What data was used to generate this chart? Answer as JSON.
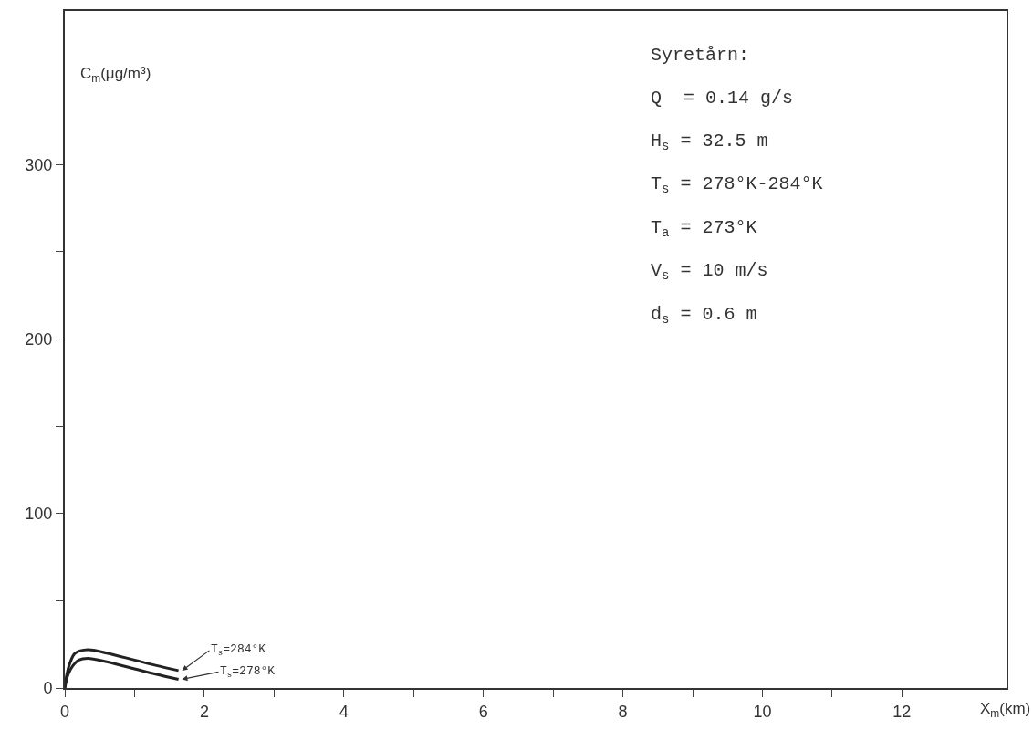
{
  "chart_data": {
    "type": "line",
    "xlabel": "X$_{m}$(km)",
    "ylabel": "C$_{m}$(μg/m³)",
    "xlim": [
      0,
      13.5
    ],
    "xticks": [
      0,
      {
        "value": 1,
        "label": null
      },
      2,
      {
        "value": 3,
        "label": null
      },
      4,
      {
        "value": 5,
        "label": null
      },
      6,
      {
        "value": 7,
        "label": null
      },
      8,
      {
        "value": 9,
        "label": null
      },
      10,
      {
        "value": 11,
        "label": null
      },
      12
    ],
    "ylim": [
      0,
      388
    ],
    "yticks": [
      0,
      {
        "value": 50,
        "label": null
      },
      100,
      {
        "value": 150,
        "label": null
      },
      200,
      {
        "value": 250,
        "label": null
      },
      300
    ],
    "legend": false,
    "marker": "none",
    "line_style": "solid",
    "series": [
      {
        "name": "T$_{s}$=284°K",
        "color": "#222222",
        "x": [
          0,
          0.03,
          0.08,
          0.15,
          0.33,
          0.6,
          1.0,
          1.3,
          1.63
        ],
        "values": [
          0,
          8,
          15,
          20,
          22,
          20,
          16,
          13,
          10
        ]
      },
      {
        "name": "T$_{s}$=278°K",
        "color": "#222222",
        "x": [
          0,
          0.05,
          0.12,
          0.2,
          0.33,
          0.6,
          1.0,
          1.3,
          1.63
        ],
        "values": [
          0,
          8,
          13,
          16,
          17,
          15,
          11,
          8,
          5
        ]
      }
    ],
    "annotations": [
      "Syretårn:",
      "Q  = 0.14 g/s",
      "H$_{s}$ = 32.5 m",
      "T$_{s}$ = 278°K-284°K",
      "T$_{a}$ = 273°K",
      "V$_{s}$ = 10 m/s",
      "d$_{s}$ = 0.6 m"
    ]
  }
}
